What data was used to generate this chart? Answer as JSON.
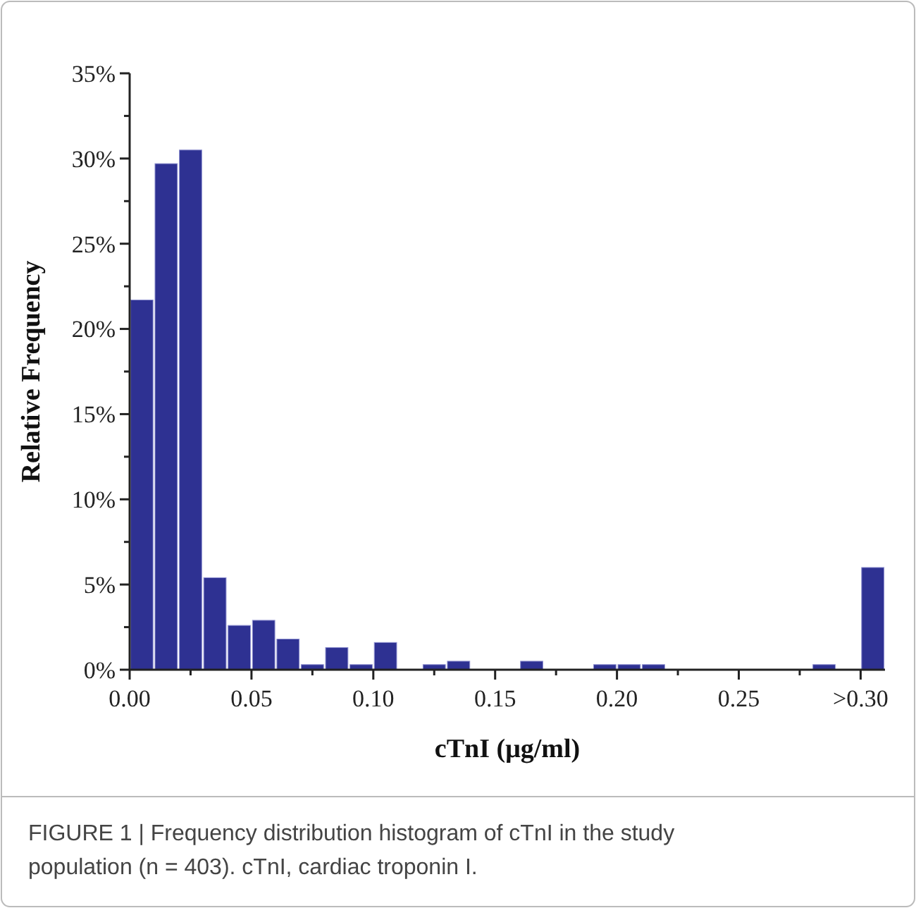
{
  "chart_data": {
    "type": "histogram",
    "xlabel": "cTnI (μg/ml)",
    "ylabel": "Relative Frequency",
    "color": "#2e3192",
    "bins": [
      0,
      0.01,
      0.02,
      0.03,
      0.04,
      0.05,
      0.06,
      0.07,
      0.08,
      0.09,
      0.1,
      0.11,
      0.12,
      0.13,
      0.14,
      0.15,
      0.16,
      0.17,
      0.18,
      0.19,
      0.2,
      0.21,
      0.22,
      0.23,
      0.24,
      0.25,
      0.26,
      0.27,
      0.28,
      0.29,
      0.3,
      0.31
    ],
    "values": [
      21.7,
      29.7,
      30.5,
      5.4,
      2.6,
      2.9,
      1.8,
      0.3,
      1.3,
      0.3,
      1.6,
      0,
      0.3,
      0.5,
      0,
      0,
      0.5,
      0,
      0,
      0.3,
      0.3,
      0.3,
      0,
      0,
      0,
      0,
      0,
      0,
      0.3,
      0,
      6
    ],
    "xlim": [
      0,
      0.31
    ],
    "xticks": [
      {
        "value": 0,
        "label": "0.00"
      },
      {
        "value": 0.025,
        "label": null
      },
      {
        "value": 0.05,
        "label": "0.05"
      },
      {
        "value": 0.075,
        "label": null
      },
      {
        "value": 0.1,
        "label": "0.10"
      },
      {
        "value": 0.125,
        "label": null
      },
      {
        "value": 0.15,
        "label": "0.15"
      },
      {
        "value": 0.175,
        "label": null
      },
      {
        "value": 0.2,
        "label": "0.20"
      },
      {
        "value": 0.225,
        "label": null
      },
      {
        "value": 0.25,
        "label": "0.25"
      },
      {
        "value": 0.275,
        "label": null
      },
      {
        "value": 0.3,
        "label": ">0.30"
      }
    ],
    "ylim": [
      0,
      35
    ],
    "yticks": [
      {
        "value": 0,
        "label": "0%"
      },
      {
        "value": 2.5,
        "label": null
      },
      {
        "value": 5,
        "label": "5%"
      },
      {
        "value": 7.5,
        "label": null
      },
      {
        "value": 10,
        "label": "10%"
      },
      {
        "value": 12.5,
        "label": null
      },
      {
        "value": 15,
        "label": "15%"
      },
      {
        "value": 17.5,
        "label": null
      },
      {
        "value": 20,
        "label": "20%"
      },
      {
        "value": 22.5,
        "label": null
      },
      {
        "value": 25,
        "label": "25%"
      },
      {
        "value": 27.5,
        "label": null
      },
      {
        "value": 30,
        "label": "30%"
      },
      {
        "value": 32.5,
        "label": null
      },
      {
        "value": 35,
        "label": "35%"
      }
    ],
    "grid": false,
    "annotations": [
      "FIGURE 1 | Frequency distribution histogram of cTnI in the study population (n = 403). cTnI, cardiac troponin I."
    ]
  }
}
